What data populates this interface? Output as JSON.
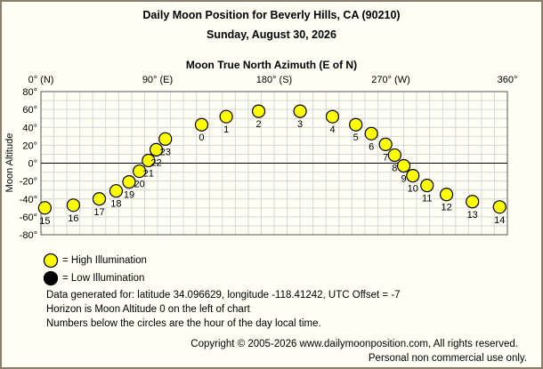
{
  "header": {
    "title": "Daily Moon Position for Beverly Hills, CA (90210)",
    "date": "Sunday, August 30, 2026"
  },
  "chart_data": {
    "type": "scatter",
    "xlabel": "Moon True North Azimuth (E of N)",
    "ylabel": "Moon Altitude",
    "xlim": [
      0,
      360
    ],
    "ylim": [
      -80,
      80
    ],
    "x_ticks": [
      {
        "value": 0,
        "label": "0° (N)"
      },
      {
        "value": 90,
        "label": "90° (E)"
      },
      {
        "value": 180,
        "label": "180° (S)"
      },
      {
        "value": 270,
        "label": "270° (W)"
      },
      {
        "value": 360,
        "label": "360°"
      }
    ],
    "y_ticks": [
      80,
      60,
      40,
      20,
      0,
      -20,
      -40,
      -60,
      -80
    ],
    "y_tick_labels": [
      "80°",
      "60°",
      "40°",
      "20°",
      "0°",
      "-20°",
      "-40°",
      "-60°",
      "-80°"
    ],
    "grid": true,
    "horizon_altitude": 0,
    "series": [
      {
        "name": "High Illumination",
        "color": "#ffff00",
        "points": [
          {
            "hour": "15",
            "azimuth": 3,
            "altitude": -50
          },
          {
            "hour": "16",
            "azimuth": 25,
            "altitude": -47
          },
          {
            "hour": "17",
            "azimuth": 45,
            "altitude": -40
          },
          {
            "hour": "18",
            "azimuth": 58,
            "altitude": -31
          },
          {
            "hour": "19",
            "azimuth": 68,
            "altitude": -21
          },
          {
            "hour": "20",
            "azimuth": 76,
            "altitude": -9
          },
          {
            "hour": "21",
            "azimuth": 83,
            "altitude": 3
          },
          {
            "hour": "22",
            "azimuth": 89,
            "altitude": 15
          },
          {
            "hour": "23",
            "azimuth": 96,
            "altitude": 27
          },
          {
            "hour": "0",
            "azimuth": 124,
            "altitude": 43
          },
          {
            "hour": "1",
            "azimuth": 143,
            "altitude": 52
          },
          {
            "hour": "2",
            "azimuth": 168,
            "altitude": 58
          },
          {
            "hour": "3",
            "azimuth": 200,
            "altitude": 58
          },
          {
            "hour": "4",
            "azimuth": 225,
            "altitude": 52
          },
          {
            "hour": "5",
            "azimuth": 243,
            "altitude": 43
          },
          {
            "hour": "6",
            "azimuth": 255,
            "altitude": 33
          },
          {
            "hour": "7",
            "azimuth": 266,
            "altitude": 21
          },
          {
            "hour": "8",
            "azimuth": 273,
            "altitude": 9
          },
          {
            "hour": "9",
            "azimuth": 280,
            "altitude": -3
          },
          {
            "hour": "10",
            "azimuth": 287,
            "altitude": -14
          },
          {
            "hour": "11",
            "azimuth": 298,
            "altitude": -25
          },
          {
            "hour": "12",
            "azimuth": 313,
            "altitude": -35
          },
          {
            "hour": "13",
            "azimuth": 333,
            "altitude": -43
          },
          {
            "hour": "14",
            "azimuth": 354,
            "altitude": -49
          }
        ]
      },
      {
        "name": "Low Illumination",
        "color": "#000000",
        "points": []
      }
    ]
  },
  "legend": {
    "high_label": "= High Illumination",
    "low_label": "= Low Illumination"
  },
  "notes": {
    "line1": "Data generated for: latitude 34.096629, longitude -118.41242, UTC Offset = -7",
    "line2": "Horizon is Moon Altitude 0 on the left of chart",
    "line3": "Numbers below the circles are the hour of the day local time."
  },
  "footer": {
    "copyright": "Copyright © 2005-2026 www.dailymoonposition.com, All rights reserved.",
    "personal": "Personal non commercial use only."
  }
}
